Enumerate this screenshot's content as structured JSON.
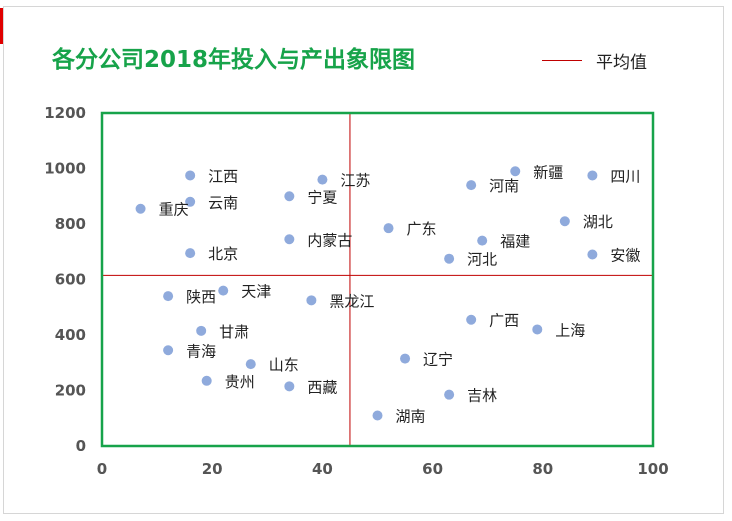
{
  "chart_data": {
    "type": "scatter",
    "title": "各分公司2018年投入与产出象限图",
    "xlim": [
      0,
      100
    ],
    "ylim": [
      0,
      1200
    ],
    "x_ticks": [
      0,
      20,
      40,
      60,
      80,
      100
    ],
    "y_ticks": [
      0,
      200,
      400,
      600,
      800,
      1000,
      1200
    ],
    "grid": false,
    "legend": {
      "position": "top-right",
      "entries": [
        "平均值"
      ]
    },
    "average_lines": {
      "x": 45,
      "y": 615
    },
    "colors": {
      "point": "#8faadc",
      "average_line": "#c00000",
      "plot_border": "#17a34a",
      "title": "#17a34a"
    },
    "points": [
      {
        "name": "江西",
        "x": 16,
        "y": 975
      },
      {
        "name": "云南",
        "x": 16,
        "y": 880
      },
      {
        "name": "重庆",
        "x": 7,
        "y": 855
      },
      {
        "name": "北京",
        "x": 16,
        "y": 695
      },
      {
        "name": "江苏",
        "x": 40,
        "y": 960
      },
      {
        "name": "宁夏",
        "x": 34,
        "y": 900
      },
      {
        "name": "内蒙古",
        "x": 34,
        "y": 745
      },
      {
        "name": "广东",
        "x": 52,
        "y": 785
      },
      {
        "name": "新疆",
        "x": 75,
        "y": 990
      },
      {
        "name": "四川",
        "x": 89,
        "y": 975
      },
      {
        "name": "河南",
        "x": 67,
        "y": 940
      },
      {
        "name": "湖北",
        "x": 84,
        "y": 810
      },
      {
        "name": "福建",
        "x": 69,
        "y": 740
      },
      {
        "name": "安徽",
        "x": 89,
        "y": 690
      },
      {
        "name": "河北",
        "x": 63,
        "y": 675
      },
      {
        "name": "天津",
        "x": 22,
        "y": 560
      },
      {
        "name": "陕西",
        "x": 12,
        "y": 540
      },
      {
        "name": "黑龙江",
        "x": 38,
        "y": 525
      },
      {
        "name": "甘肃",
        "x": 18,
        "y": 415
      },
      {
        "name": "青海",
        "x": 12,
        "y": 345
      },
      {
        "name": "山东",
        "x": 27,
        "y": 295
      },
      {
        "name": "贵州",
        "x": 19,
        "y": 235
      },
      {
        "name": "西藏",
        "x": 34,
        "y": 215
      },
      {
        "name": "广西",
        "x": 67,
        "y": 455
      },
      {
        "name": "上海",
        "x": 79,
        "y": 420
      },
      {
        "name": "辽宁",
        "x": 55,
        "y": 315
      },
      {
        "name": "吉林",
        "x": 63,
        "y": 185
      },
      {
        "name": "湖南",
        "x": 50,
        "y": 110
      }
    ]
  }
}
